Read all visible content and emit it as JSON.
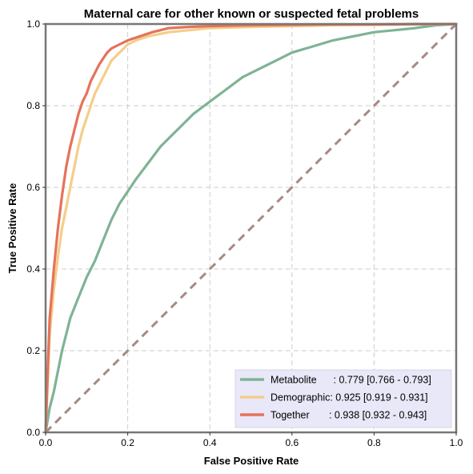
{
  "chart_data": {
    "type": "line",
    "title": "Maternal care for other known or suspected fetal problems",
    "xlabel": "False Positive Rate",
    "ylabel": "True Positive Rate",
    "xlim": [
      0,
      1
    ],
    "ylim": [
      0,
      1
    ],
    "xticks": [
      "0.0",
      "0.2",
      "0.4",
      "0.6",
      "0.8",
      "1.0"
    ],
    "yticks": [
      "0.0",
      "0.2",
      "0.4",
      "0.6",
      "0.8",
      "1.0"
    ],
    "grid": true,
    "legend_position": "lower-right",
    "diagonal": {
      "x": [
        0,
        1
      ],
      "y": [
        0,
        1
      ],
      "color": "#a68a80"
    },
    "series": [
      {
        "name": "Metabolite",
        "legend_label": "Metabolite      : 0.779 [0.766 - 0.793]",
        "color": "#7fb395",
        "x": [
          0,
          0.01,
          0.02,
          0.03,
          0.04,
          0.05,
          0.06,
          0.08,
          0.1,
          0.12,
          0.14,
          0.16,
          0.18,
          0.2,
          0.22,
          0.25,
          0.28,
          0.3,
          0.33,
          0.36,
          0.4,
          0.44,
          0.48,
          0.52,
          0.56,
          0.6,
          0.65,
          0.7,
          0.75,
          0.8,
          0.85,
          0.9,
          0.95,
          1.0
        ],
        "y": [
          0,
          0.06,
          0.1,
          0.15,
          0.2,
          0.24,
          0.28,
          0.33,
          0.38,
          0.42,
          0.47,
          0.52,
          0.56,
          0.59,
          0.62,
          0.66,
          0.7,
          0.72,
          0.75,
          0.78,
          0.81,
          0.84,
          0.87,
          0.89,
          0.91,
          0.93,
          0.945,
          0.96,
          0.97,
          0.98,
          0.985,
          0.99,
          0.997,
          1.0
        ]
      },
      {
        "name": "Demographic",
        "legend_label": "Demographic: 0.925 [0.919 - 0.931]",
        "color": "#f5cd8a",
        "x": [
          0,
          0.005,
          0.01,
          0.02,
          0.03,
          0.04,
          0.05,
          0.06,
          0.07,
          0.08,
          0.09,
          0.1,
          0.11,
          0.12,
          0.13,
          0.14,
          0.15,
          0.16,
          0.18,
          0.2,
          0.22,
          0.25,
          0.3,
          0.35,
          0.4,
          0.5,
          0.6,
          0.7,
          0.8,
          0.9,
          1.0
        ],
        "y": [
          0,
          0.12,
          0.24,
          0.35,
          0.43,
          0.5,
          0.55,
          0.6,
          0.65,
          0.7,
          0.74,
          0.77,
          0.8,
          0.83,
          0.85,
          0.87,
          0.89,
          0.91,
          0.93,
          0.95,
          0.96,
          0.97,
          0.98,
          0.985,
          0.99,
          0.993,
          0.995,
          0.997,
          0.998,
          0.999,
          1.0
        ]
      },
      {
        "name": "Together",
        "legend_label": "Together       : 0.938 [0.932 - 0.943]",
        "color": "#e4735a",
        "x": [
          0,
          0.005,
          0.01,
          0.02,
          0.03,
          0.04,
          0.05,
          0.06,
          0.07,
          0.08,
          0.09,
          0.1,
          0.11,
          0.12,
          0.13,
          0.14,
          0.15,
          0.16,
          0.18,
          0.2,
          0.23,
          0.26,
          0.3,
          0.35,
          0.4,
          0.5,
          0.6,
          0.7,
          0.8,
          0.9,
          1.0
        ],
        "y": [
          0,
          0.15,
          0.28,
          0.4,
          0.5,
          0.58,
          0.65,
          0.7,
          0.74,
          0.78,
          0.81,
          0.83,
          0.86,
          0.88,
          0.9,
          0.915,
          0.93,
          0.94,
          0.95,
          0.96,
          0.97,
          0.98,
          0.99,
          0.993,
          0.995,
          0.997,
          0.998,
          0.999,
          0.999,
          1.0,
          1.0
        ]
      }
    ]
  }
}
